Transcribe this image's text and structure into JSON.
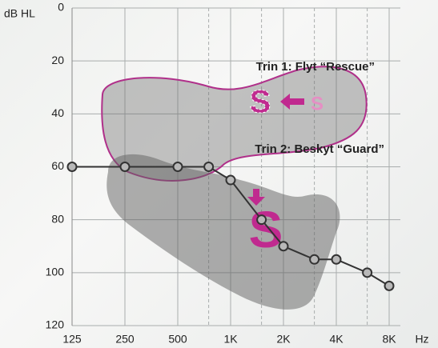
{
  "chart_data": {
    "type": "line",
    "y_axis_label": "dB HL",
    "x_axis_label": "Hz",
    "x": [
      125,
      250,
      500,
      750,
      1000,
      1500,
      2000,
      3000,
      4000,
      6000,
      8000
    ],
    "values": [
      60,
      60,
      60,
      60,
      65,
      80,
      90,
      95,
      95,
      100,
      105
    ],
    "color": "#333333",
    "xscale": "log",
    "xlim": [
      125,
      8000
    ],
    "xticks": [
      125,
      250,
      500,
      {
        "value": 1000,
        "label": "1K"
      },
      {
        "value": 2000,
        "label": "2K"
      },
      {
        "value": 4000,
        "label": "4K"
      },
      {
        "value": 8000,
        "label": "8K"
      }
    ],
    "minor_xticks": [
      750,
      1500,
      3000,
      6000
    ],
    "ylim": [
      0,
      120
    ],
    "y_reversed": true,
    "yticks": [
      0,
      20,
      40,
      60,
      80,
      100,
      120
    ],
    "grid": true,
    "annotations": [
      "Trin 1: Flyt “Rescue”",
      "Trin 2: Beskyt “Guard”",
      "S",
      "S",
      "S"
    ]
  }
}
